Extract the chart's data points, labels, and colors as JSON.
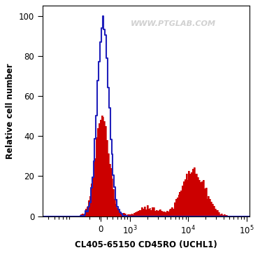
{
  "title": "WWW.PTGLAB.COM",
  "xlabel": "CL405-65150 CD45RO (UCHL1)",
  "ylabel": "Relative cell number",
  "ylim": [
    0,
    105
  ],
  "yticks": [
    0,
    20,
    40,
    60,
    80,
    100
  ],
  "bg_color": "#ffffff",
  "plot_bg_color": "#ffffff",
  "blue_line_color": "#2020bb",
  "red_fill_color": "#cc0000",
  "watermark_text": "WWW.PTGLAB.COM",
  "watermark_color": "#cccccc"
}
